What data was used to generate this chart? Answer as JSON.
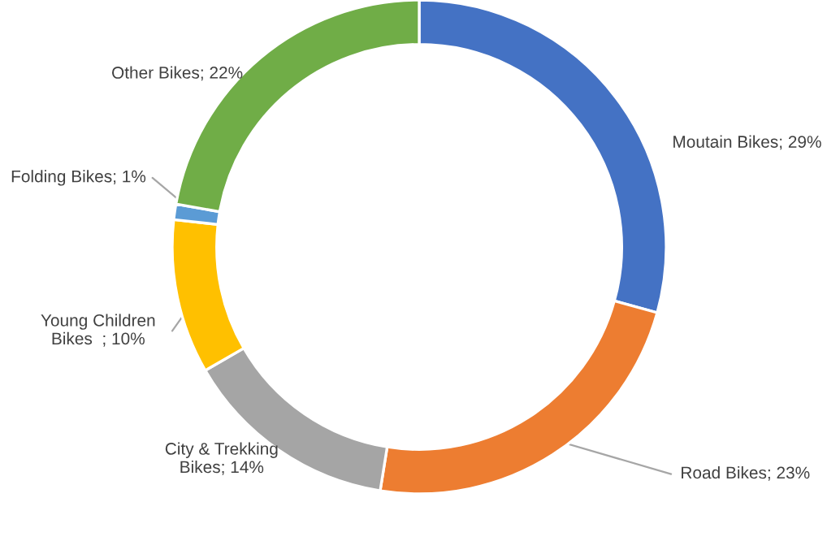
{
  "chart_data": {
    "type": "donut",
    "categories": [
      "Moutain Bikes",
      "Road Bikes",
      "City & Trekking\nBikes",
      "Young Children\nBikes  ",
      "Folding Bikes",
      "Other Bikes"
    ],
    "values": [
      29,
      23,
      14,
      10,
      1,
      22
    ],
    "value_labels": [
      "29%",
      "23%",
      "14%",
      "10%",
      "1%",
      "22%"
    ],
    "colors": [
      "#4472c4",
      "#ed7d31",
      "#a5a5a5",
      "#ffc000",
      "#5b9bd5",
      "#70ad47"
    ]
  }
}
